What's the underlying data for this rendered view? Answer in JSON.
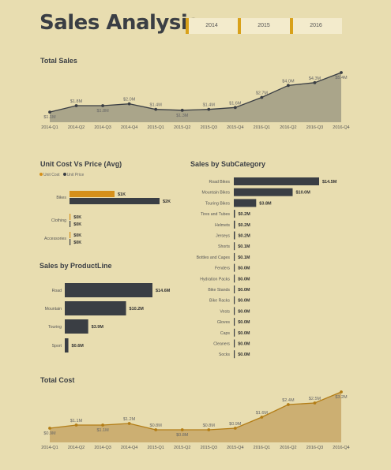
{
  "page": {
    "title": "Sales Analysis",
    "slicer": [
      "2014",
      "2015",
      "2016"
    ]
  },
  "colors": {
    "dark": "#3a3e44",
    "gold": "#d6901a",
    "total_sales_area": "#a39e86",
    "total_cost_area": "#c9aa6c",
    "total_cost_line": "#b37d16"
  },
  "chart_data": [
    {
      "id": "total_sales",
      "type": "area",
      "title": "Total Sales",
      "categories": [
        "2014-Q1",
        "2014-Q2",
        "2014-Q3",
        "2014-Q4",
        "2015-Q1",
        "2015-Q2",
        "2015-Q3",
        "2015-Q4",
        "2016-Q1",
        "2016-Q2",
        "2016-Q3",
        "2016-Q4"
      ],
      "values": [
        1.1,
        1.8,
        1.8,
        2.0,
        1.4,
        1.3,
        1.4,
        1.6,
        2.7,
        4.0,
        4.3,
        5.4
      ],
      "labels": [
        "$1.1M",
        "$1.8M",
        "$1.8M",
        "$2.0M",
        "$1.4M",
        "$1.3M",
        "$1.4M",
        "$1.6M",
        "$2.7M",
        "$4.0M",
        "$4.3M",
        "$5.4M"
      ],
      "label_side": [
        "below",
        "above",
        "below",
        "above",
        "above",
        "below",
        "above",
        "above",
        "above",
        "above",
        "above",
        "below"
      ]
    },
    {
      "id": "unit_cost_vs_price",
      "type": "bar",
      "orientation": "horizontal",
      "title": "Unit Cost Vs Price (Avg)",
      "legend": [
        "Unit Cost",
        "Unit Price"
      ],
      "categories": [
        "Bikes",
        "Clothing",
        "Accessories"
      ],
      "series": [
        {
          "name": "Unit Cost",
          "values": [
            1,
            0,
            0
          ],
          "labels": [
            "$1K",
            "$0K",
            "$0K"
          ]
        },
        {
          "name": "Unit Price",
          "values": [
            2,
            0,
            0
          ],
          "labels": [
            "$2K",
            "$0K",
            "$0K"
          ]
        }
      ]
    },
    {
      "id": "sales_by_productline",
      "type": "bar",
      "orientation": "horizontal",
      "title": "Sales by ProductLine",
      "categories": [
        "Road",
        "Mountain",
        "Touring",
        "Sport"
      ],
      "values": [
        14.6,
        10.2,
        3.9,
        0.6
      ],
      "labels": [
        "$14.6M",
        "$10.2M",
        "$3.9M",
        "$0.6M"
      ]
    },
    {
      "id": "sales_by_subcategory",
      "type": "bar",
      "orientation": "horizontal",
      "title": "Sales by SubCategory",
      "categories": [
        "Road Bikes",
        "Mountain Bikes",
        "Touring Bikes",
        "Tires and Tubes",
        "Helmets",
        "Jerseys",
        "Shorts",
        "Bottles and Cages",
        "Fenders",
        "Hydration Packs",
        "Bike Stands",
        "Bike Racks",
        "Vests",
        "Gloves",
        "Caps",
        "Cleaners",
        "Socks"
      ],
      "values": [
        14.5,
        10.0,
        3.8,
        0.2,
        0.2,
        0.2,
        0.1,
        0.1,
        0.0,
        0.0,
        0.0,
        0.0,
        0.0,
        0.0,
        0.0,
        0.0,
        0.0
      ],
      "labels": [
        "$14.5M",
        "$10.0M",
        "$3.8M",
        "$0.2M",
        "$0.2M",
        "$0.2M",
        "$0.1M",
        "$0.1M",
        "$0.0M",
        "$0.0M",
        "$0.0M",
        "$0.0M",
        "$0.0M",
        "$0.0M",
        "$0.0M",
        "$0.0M",
        "$0.0M"
      ]
    },
    {
      "id": "total_cost",
      "type": "area",
      "title": "Total Cost",
      "categories": [
        "2014-Q1",
        "2014-Q2",
        "2014-Q3",
        "2014-Q4",
        "2015-Q1",
        "2015-Q2",
        "2015-Q3",
        "2015-Q4",
        "2016-Q1",
        "2016-Q2",
        "2016-Q3",
        "2016-Q4"
      ],
      "values": [
        0.9,
        1.1,
        1.1,
        1.2,
        0.8,
        0.8,
        0.8,
        0.9,
        1.6,
        2.4,
        2.5,
        3.2
      ],
      "labels": [
        "$0.9M",
        "$1.1M",
        "$1.1M",
        "$1.2M",
        "$0.8M",
        "$0.8M",
        "$0.8M",
        "$0.9M",
        "$1.6M",
        "$2.4M",
        "$2.5M",
        "$3.2M"
      ],
      "label_side": [
        "below",
        "above",
        "below",
        "above",
        "above",
        "below",
        "above",
        "above",
        "above",
        "above",
        "above",
        "below"
      ]
    }
  ]
}
